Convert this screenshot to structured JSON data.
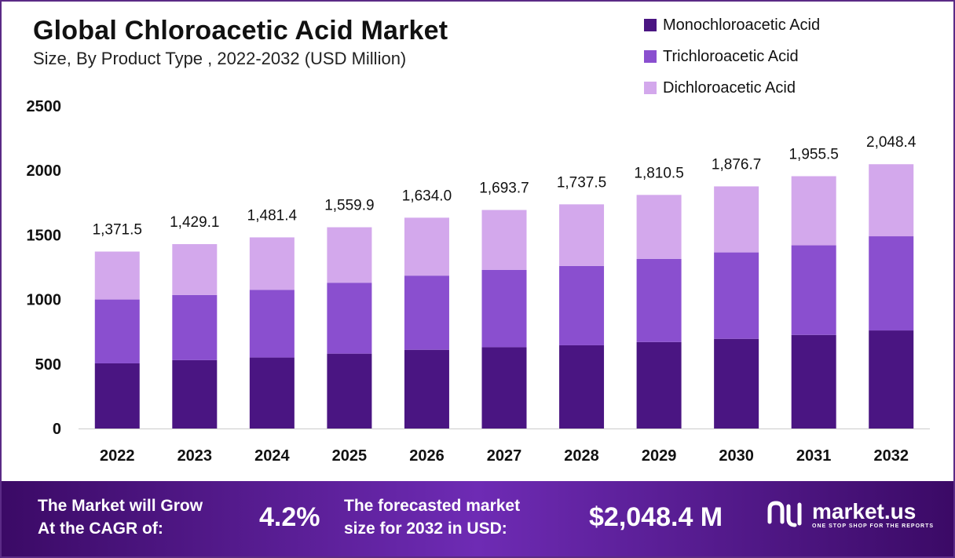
{
  "header": {
    "title": "Global Chloroacetic Acid Market",
    "subtitle": "Size, By Product Type , 2022-2032 (USD Million)"
  },
  "legend": [
    {
      "label": "Monochloroacetic Acid",
      "color": "#4a1582"
    },
    {
      "label": "Trichloroacetic Acid",
      "color": "#8a4fcf"
    },
    {
      "label": "Dichloroacetic Acid",
      "color": "#d3a8ec"
    }
  ],
  "chart_data": {
    "type": "bar",
    "stacked": true,
    "categories": [
      "2022",
      "2023",
      "2024",
      "2025",
      "2026",
      "2027",
      "2028",
      "2029",
      "2030",
      "2031",
      "2032"
    ],
    "series": [
      {
        "name": "Monochloroacetic Acid",
        "color": "#4a1582",
        "values": [
          505,
          530,
          550,
          580,
          610,
          630,
          645,
          670,
          695,
          725,
          760
        ]
      },
      {
        "name": "Trichloroacetic Acid",
        "color": "#8a4fcf",
        "values": [
          495,
          505,
          525,
          550,
          575,
          600,
          615,
          645,
          670,
          695,
          730
        ]
      },
      {
        "name": "Dichloroacetic Acid",
        "color": "#d3a8ec",
        "values": [
          371.5,
          394.1,
          406.4,
          429.9,
          449.0,
          463.7,
          477.5,
          495.5,
          511.7,
          535.5,
          558.4
        ]
      }
    ],
    "totals": [
      1371.5,
      1429.1,
      1481.4,
      1559.9,
      1634.0,
      1693.7,
      1737.5,
      1810.5,
      1876.7,
      1955.5,
      2048.4
    ],
    "total_labels": [
      "1,371.5",
      "1,429.1",
      "1,481.4",
      "1,559.9",
      "1,634.0",
      "1,693.7",
      "1,737.5",
      "1,810.5",
      "1,876.7",
      "1,955.5",
      "2,048.4"
    ],
    "y_ticks": [
      "0",
      "500",
      "1000",
      "1500",
      "2000",
      "2500"
    ],
    "ylim": [
      0,
      2500
    ],
    "grid": false,
    "legend_position": "top-right"
  },
  "footer": {
    "cagr_label": "The Market will Grow\nAt the CAGR of:",
    "cagr_value": "4.2%",
    "forecast_label": "The forecasted market\nsize for 2032 in USD:",
    "forecast_value": "$2,048.4 M",
    "brand_name": "market.us",
    "brand_tagline": "ONE STOP SHOP FOR THE REPORTS"
  }
}
